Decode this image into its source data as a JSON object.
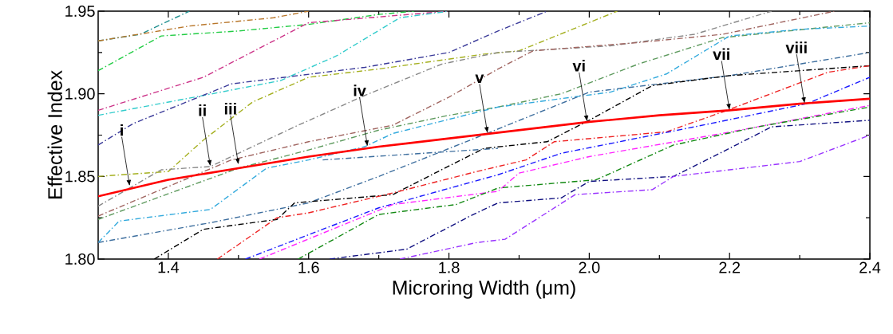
{
  "chart_data": {
    "type": "line",
    "xlabel": "Microring Width (μm)",
    "ylabel": "Effective Index",
    "xlim": [
      1.3,
      2.4
    ],
    "ylim": [
      1.8,
      1.95
    ],
    "xticks": [
      1.4,
      {
        "value": 1.5,
        "label": null
      },
      1.6,
      {
        "value": 1.7,
        "label": null
      },
      1.8,
      {
        "value": 1.9,
        "label": null
      },
      {
        "value": 2,
        "label": "2.0"
      },
      {
        "value": 2.1,
        "label": null
      },
      2.2,
      {
        "value": 2.3,
        "label": null
      },
      2.4
    ],
    "yticks": [
      {
        "value": 1.8,
        "label": "1.80"
      },
      {
        "value": 1.825,
        "label": null
      },
      {
        "value": 1.85,
        "label": "1.85"
      },
      {
        "value": 1.875,
        "label": null
      },
      {
        "value": 1.9,
        "label": "1.90"
      },
      {
        "value": 1.925,
        "label": null
      },
      {
        "value": 1.95,
        "label": "1.95"
      }
    ],
    "series": [
      {
        "color": "#1f8f8f",
        "line_style": "dashdot",
        "x": [
          1.3,
          1.36,
          1.43
        ],
        "values": [
          1.932,
          1.936,
          1.95
        ]
      },
      {
        "color": "#b8762a",
        "line_style": "dashdot",
        "x": [
          1.3,
          1.43,
          1.55,
          1.6
        ],
        "values": [
          1.932,
          1.941,
          1.946,
          1.95
        ]
      },
      {
        "color": "#22cc44",
        "line_style": "dashdot",
        "x": [
          1.3,
          1.39,
          1.5,
          1.6,
          1.7,
          1.75
        ],
        "values": [
          1.914,
          1.935,
          1.938,
          1.942,
          1.948,
          1.95
        ]
      },
      {
        "color": "#cc3388",
        "line_style": "dashdot",
        "x": [
          1.3,
          1.45,
          1.6,
          1.8
        ],
        "values": [
          1.89,
          1.91,
          1.943,
          1.95
        ]
      },
      {
        "color": "#33cccc",
        "line_style": "dashdot",
        "x": [
          1.3,
          1.45,
          1.56,
          1.64,
          1.73,
          1.8
        ],
        "values": [
          1.887,
          1.899,
          1.908,
          1.923,
          1.946,
          1.95
        ]
      },
      {
        "color": "#3a3a99",
        "line_style": "dashdot",
        "x": [
          1.3,
          1.35,
          1.49,
          1.68,
          1.8,
          1.87,
          1.94
        ],
        "values": [
          1.869,
          1.882,
          1.906,
          1.916,
          1.925,
          1.938,
          1.95
        ]
      },
      {
        "color": "#a5b020",
        "line_style": "dashdot",
        "x": [
          1.3,
          1.4,
          1.45,
          1.52,
          1.6,
          1.7,
          1.85,
          1.9,
          2.04
        ],
        "values": [
          1.85,
          1.853,
          1.872,
          1.895,
          1.91,
          1.915,
          1.924,
          1.926,
          1.95
        ]
      },
      {
        "color": "#888888",
        "line_style": "dashdot",
        "x": [
          1.3,
          1.39,
          1.46,
          1.58,
          1.68,
          1.79,
          1.87,
          2.03,
          2.15,
          2.26
        ],
        "values": [
          1.832,
          1.854,
          1.856,
          1.88,
          1.899,
          1.918,
          1.925,
          1.929,
          1.936,
          1.95
        ]
      },
      {
        "color": "#a06560",
        "line_style": "dashdot",
        "x": [
          1.3,
          1.49,
          1.6,
          1.72,
          1.8,
          1.87,
          1.92,
          2.07,
          2.19,
          2.35
        ],
        "values": [
          1.826,
          1.86,
          1.871,
          1.881,
          1.898,
          1.915,
          1.926,
          1.931,
          1.936,
          1.95
        ]
      },
      {
        "color": "#5e9a5e",
        "line_style": "dashdot",
        "x": [
          1.3,
          1.5,
          1.6,
          1.7,
          1.8,
          1.87,
          1.96,
          2.07,
          2.19,
          2.4
        ],
        "values": [
          1.824,
          1.855,
          1.866,
          1.878,
          1.887,
          1.892,
          1.9,
          1.918,
          1.934,
          1.943
        ]
      },
      {
        "color": "#33aadd",
        "line_style": "dashdot",
        "x": [
          1.3,
          1.33,
          1.46,
          1.54,
          1.6,
          1.68,
          1.72,
          1.87,
          2.03,
          2.11,
          2.2,
          2.3,
          2.4
        ],
        "values": [
          1.81,
          1.823,
          1.83,
          1.855,
          1.86,
          1.868,
          1.876,
          1.892,
          1.901,
          1.912,
          1.935,
          1.939,
          1.941
        ]
      },
      {
        "color": "#3d6e9e",
        "line_style": "dashdot",
        "x": [
          1.62,
          1.87
        ],
        "values": [
          1.86,
          1.867
        ]
      },
      {
        "color": "#3d6e9e",
        "line_style": "dashdot",
        "x": [
          1.3,
          1.46,
          1.6,
          1.7,
          1.86,
          2.0,
          2.2,
          2.4
        ],
        "values": [
          1.81,
          1.822,
          1.834,
          1.85,
          1.877,
          1.901,
          1.911,
          1.925
        ]
      },
      {
        "color": "#000000",
        "line_style": "dashdot",
        "x": [
          1.38,
          1.45,
          1.555,
          1.58,
          1.72,
          1.78,
          1.85,
          1.94,
          2.0,
          2.09,
          2.2,
          2.4
        ],
        "values": [
          1.8,
          1.818,
          1.824,
          1.834,
          1.839,
          1.852,
          1.867,
          1.871,
          1.884,
          1.905,
          1.911,
          1.917
        ]
      },
      {
        "color": "#ee2222",
        "line_style": "dashdot",
        "x": [
          1.47,
          1.555,
          1.6,
          1.72,
          1.84,
          1.91,
          1.95,
          2.11,
          2.19,
          2.34,
          2.4
        ],
        "values": [
          1.8,
          1.825,
          1.828,
          1.84,
          1.853,
          1.86,
          1.871,
          1.877,
          1.889,
          1.913,
          1.917
        ]
      },
      {
        "color": "#1a1aff",
        "line_style": "dashdot",
        "x": [
          1.51,
          1.62,
          1.7,
          1.87,
          1.96,
          2.15,
          2.31,
          2.4
        ],
        "values": [
          1.8,
          1.818,
          1.831,
          1.851,
          1.864,
          1.88,
          1.894,
          1.91
        ]
      },
      {
        "color": "#ff22ff",
        "line_style": "dashdot",
        "x": [
          1.53,
          1.72,
          1.87,
          1.9,
          2.0,
          2.19,
          2.4
        ],
        "values": [
          1.8,
          1.833,
          1.841,
          1.852,
          1.862,
          1.876,
          1.893
        ]
      },
      {
        "color": "#118811",
        "line_style": "dashdot",
        "x": [
          1.585,
          1.7,
          1.81,
          1.87,
          2.01,
          2.12,
          2.24,
          2.4
        ],
        "values": [
          1.8,
          1.827,
          1.833,
          1.843,
          1.848,
          1.869,
          1.88,
          1.892
        ]
      },
      {
        "color": "#101080",
        "line_style": "dashdot",
        "x": [
          1.63,
          1.74,
          1.83,
          1.87,
          1.96,
          2.0,
          2.12,
          2.2,
          2.26,
          2.4
        ],
        "values": [
          1.8,
          1.806,
          1.826,
          1.834,
          1.837,
          1.847,
          1.85,
          1.867,
          1.88,
          1.884
        ]
      },
      {
        "color": "#9933ff",
        "line_style": "dashdot",
        "x": [
          1.73,
          1.84,
          1.88,
          1.98,
          2.09,
          2.12,
          2.3,
          2.4
        ],
        "values": [
          1.8,
          1.81,
          1.812,
          1.839,
          1.842,
          1.85,
          1.859,
          1.875
        ]
      },
      {
        "color": "#ff0000",
        "line_style": "solid",
        "x": [
          1.3,
          1.4,
          1.5,
          1.6,
          1.7,
          1.8,
          1.9,
          2.0,
          2.1,
          2.2,
          2.3,
          2.4
        ],
        "values": [
          1.838,
          1.848,
          1.855,
          1.862,
          1.868,
          1.873,
          1.878,
          1.883,
          1.887,
          1.89,
          1.894,
          1.897
        ]
      }
    ],
    "annotations": [
      {
        "text": "i",
        "x": 1.345,
        "y": 1.844
      },
      {
        "text": "ii",
        "x": 1.46,
        "y": 1.856
      },
      {
        "text": "iii",
        "x": 1.5,
        "y": 1.857
      },
      {
        "text": "iv",
        "x": 1.684,
        "y": 1.868
      },
      {
        "text": "v",
        "x": 1.855,
        "y": 1.876
      },
      {
        "text": "vi",
        "x": 1.997,
        "y": 1.883
      },
      {
        "text": "vii",
        "x": 2.2,
        "y": 1.89
      },
      {
        "text": "viii",
        "x": 2.307,
        "y": 1.894
      }
    ]
  }
}
